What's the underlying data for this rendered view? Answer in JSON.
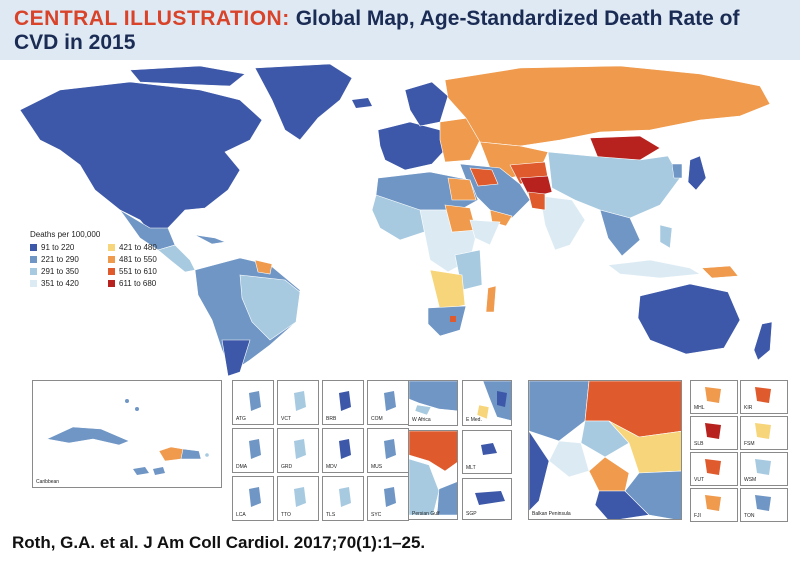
{
  "header": {
    "lead": "CENTRAL ILLUSTRATION:",
    "title_part1": "Global Map, Age-Standardized Death Rate of",
    "title_part2": "CVD in 2015"
  },
  "legend": {
    "title": "Deaths per 100,000",
    "items": [
      {
        "label": "91 to 220",
        "color": "#3d58a8"
      },
      {
        "label": "221 to 290",
        "color": "#6f96c5"
      },
      {
        "label": "291 to 350",
        "color": "#a7cae0"
      },
      {
        "label": "351 to 420",
        "color": "#dcebf3"
      },
      {
        "label": "421 to 480",
        "color": "#f7d57a"
      },
      {
        "label": "481 to 550",
        "color": "#ef9a4c"
      },
      {
        "label": "551 to 610",
        "color": "#df5a2c"
      },
      {
        "label": "611 to 680",
        "color": "#b8221e"
      }
    ]
  },
  "insets": {
    "caribbean": "Caribbean",
    "small": [
      "ATG",
      "VCT",
      "BRB",
      "COM",
      "DMA",
      "GRD",
      "MDV",
      "MUS",
      "LCA",
      "TTO",
      "TLS",
      "SYC"
    ],
    "w_africa": "W Africa",
    "e_med": "E Med.",
    "persian_gulf": "Persian Gulf",
    "mlt": "MLT",
    "sgp": "SGP",
    "balkan": "Balkan Peninsula",
    "pacific": [
      "MHL",
      "KIR",
      "SLB",
      "FSM",
      "VUT",
      "WSM",
      "FJI",
      "TON"
    ]
  },
  "footer": {
    "citation": "Roth, G.A. et al. J Am Coll Cardiol. 2017;70(1):1–25."
  }
}
